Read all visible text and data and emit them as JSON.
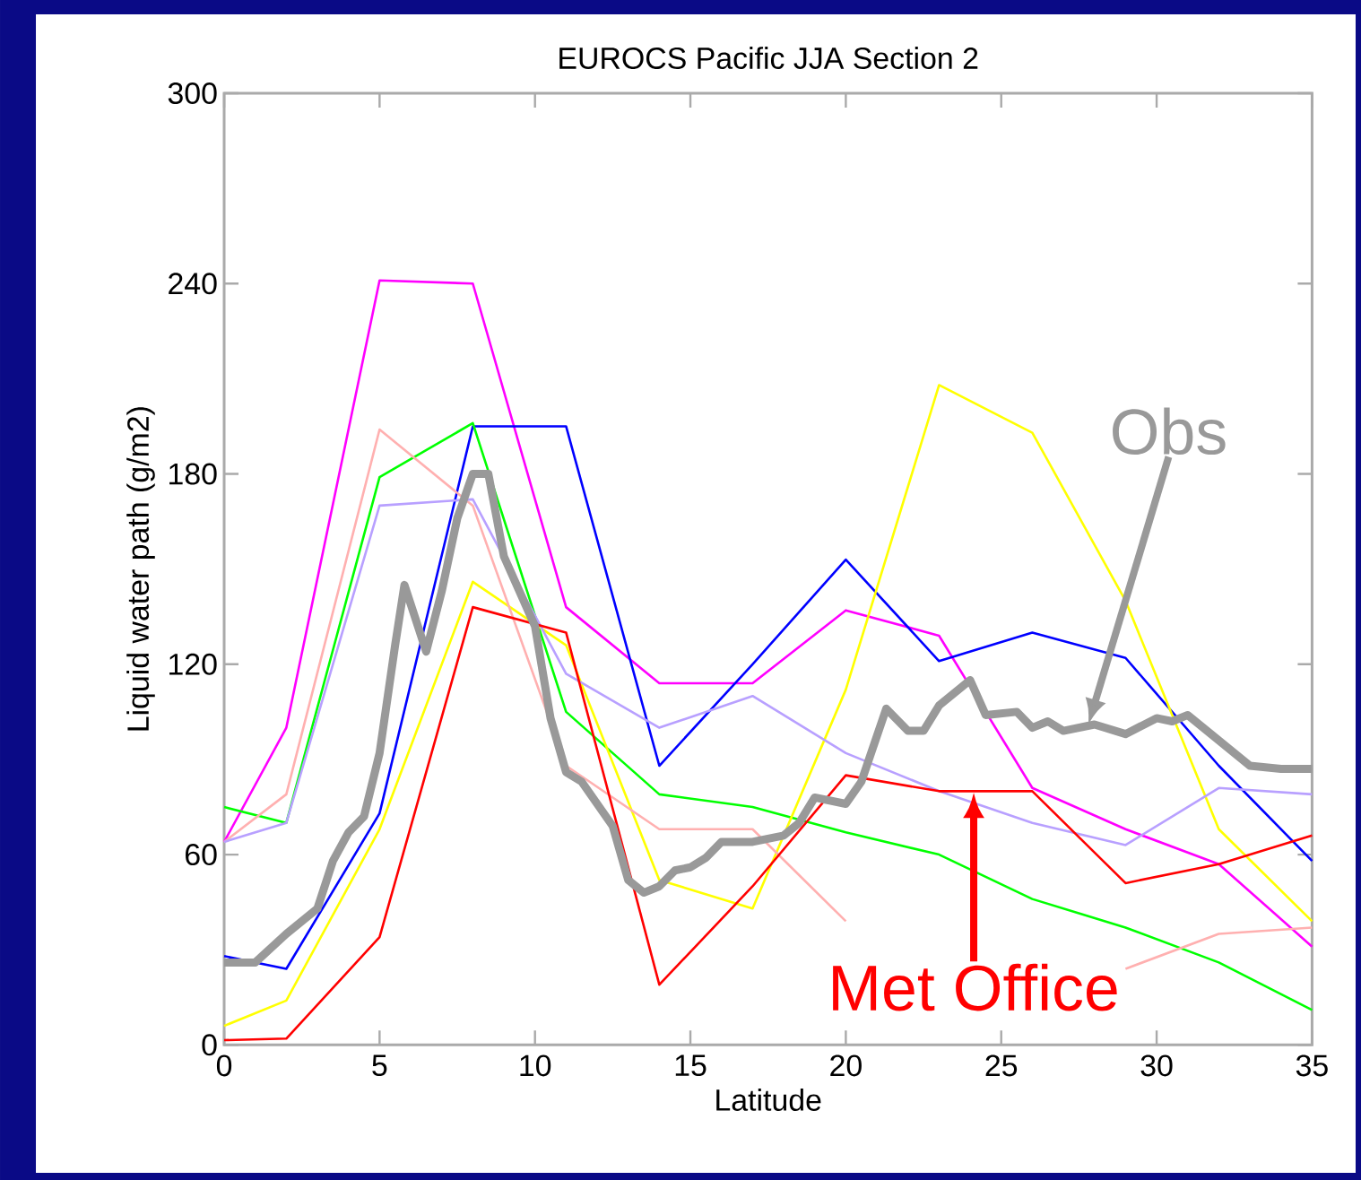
{
  "chart_data": {
    "type": "line",
    "title": "EUROCS Pacific    JJA    Section 2",
    "xlabel": "Latitude",
    "ylabel": "Liquid water path  (g/m2)",
    "xlim": [
      0,
      35
    ],
    "ylim": [
      0,
      300
    ],
    "xticks": [
      0,
      5,
      10,
      15,
      20,
      25,
      30,
      35
    ],
    "yticks": [
      0,
      60,
      120,
      180,
      240,
      300
    ],
    "line_style": "solid",
    "x": [
      0,
      2,
      5,
      8,
      11,
      14,
      17,
      20,
      23,
      26,
      29,
      32,
      35
    ],
    "series": [
      {
        "color": "#ff00ff",
        "values": [
          64,
          100,
          241,
          240,
          138,
          114,
          114,
          137,
          129,
          81,
          68,
          57,
          31
        ]
      },
      {
        "color": "#0000ff",
        "values": [
          28,
          24,
          73,
          195,
          195,
          88,
          120,
          153,
          121,
          130,
          122,
          88,
          58
        ]
      },
      {
        "color": "#00ff00",
        "values": [
          75,
          70,
          179,
          196,
          105,
          79,
          75,
          67,
          60,
          46,
          37,
          26,
          11
        ]
      },
      {
        "color": "#ffff00",
        "values": [
          6,
          14,
          68,
          146,
          126,
          52,
          43,
          112,
          208,
          193,
          140,
          68,
          39
        ]
      },
      {
        "color": "#ffb0b0",
        "values": [
          64,
          79,
          194,
          170,
          88,
          68,
          68,
          39,
          null,
          null,
          24,
          35,
          37
        ]
      },
      {
        "color": "#b8a0ff",
        "values": [
          64,
          70,
          170,
          172,
          117,
          100,
          110,
          92,
          80,
          70,
          63,
          81,
          79
        ]
      },
      {
        "name": "Met Office",
        "color": "#ff0000",
        "values": [
          1.5,
          2,
          34,
          138,
          130,
          19,
          50,
          85,
          80,
          80,
          51,
          57,
          66
        ]
      },
      {
        "name": "Obs",
        "color": "#999999",
        "x": [
          0,
          1,
          2,
          3,
          3.5,
          4,
          4.5,
          5,
          5.5,
          5.8,
          6.5,
          7,
          7.5,
          8,
          8.5,
          9,
          10,
          10.5,
          11,
          11.5,
          12,
          12.5,
          13,
          13.5,
          14,
          14.5,
          15,
          15.5,
          16,
          17,
          18,
          18.5,
          19,
          20,
          20.5,
          21.3,
          22,
          22.5,
          23,
          24,
          24.5,
          25.5,
          26,
          26.5,
          27,
          28,
          29,
          30,
          30.5,
          31,
          32,
          33,
          34,
          35
        ],
        "values": [
          26,
          26,
          35,
          43,
          58,
          67,
          72,
          92,
          126,
          145,
          124,
          143,
          166,
          180,
          180,
          154,
          132,
          103,
          86,
          83,
          76,
          69,
          52,
          48,
          50,
          55,
          56,
          59,
          64,
          64,
          66,
          70,
          78,
          76,
          83,
          106,
          99,
          99,
          107,
          115,
          104,
          105,
          100,
          102,
          99,
          101,
          98,
          103,
          102,
          104,
          96,
          88,
          87,
          87
        ]
      }
    ]
  }
}
